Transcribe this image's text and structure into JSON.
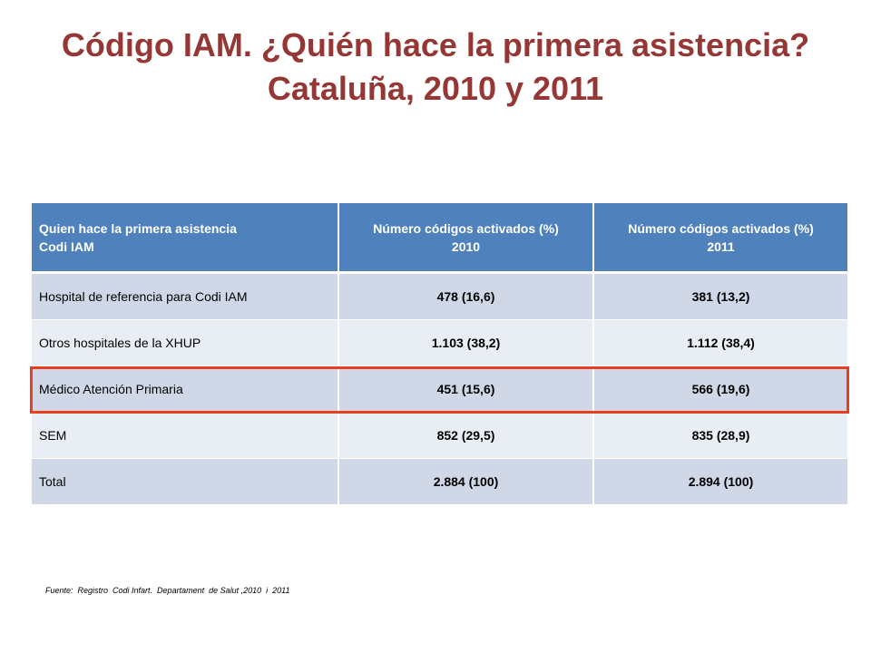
{
  "title": {
    "line1": "Código IAM. ¿Quién hace la primera asistencia?",
    "line2": "Cataluña, 2010 y 2011"
  },
  "table": {
    "headers": [
      {
        "line1": "Quien hace la primera asistencia",
        "line2": "Codi IAM"
      },
      {
        "line1": "Número códigos activados (%)",
        "line2": "2010"
      },
      {
        "line1": "Número códigos activados (%)",
        "line2": "2011"
      }
    ],
    "rows": [
      {
        "label": "Hospital de referencia para Codi IAM",
        "y2010": "478 (16,6)",
        "y2011": "381 (13,2)"
      },
      {
        "label": "Otros hospitales de la XHUP",
        "y2010": "1.103 (38,2)",
        "y2011": "1.112 (38,4)"
      },
      {
        "label": "Médico Atención Primaria",
        "y2010": "451 (15,6)",
        "y2011": "566 (19,6)"
      },
      {
        "label": "SEM",
        "y2010": "852 (29,5)",
        "y2011": "835 (28,9)"
      },
      {
        "label": "Total",
        "y2010": "2.884 (100)",
        "y2011": "2.894 (100)"
      }
    ],
    "highlighted_row": "Médico Atención Primaria"
  },
  "source": "Fuente:  Registro  Codi Infart.  Departament  de Salut ,2010  i  2011",
  "colors": {
    "title": "#953735",
    "header_bg": "#4f81bd",
    "row_odd": "#d0d8e8",
    "row_even": "#e9edf4",
    "highlight_border": "#e8401e"
  }
}
